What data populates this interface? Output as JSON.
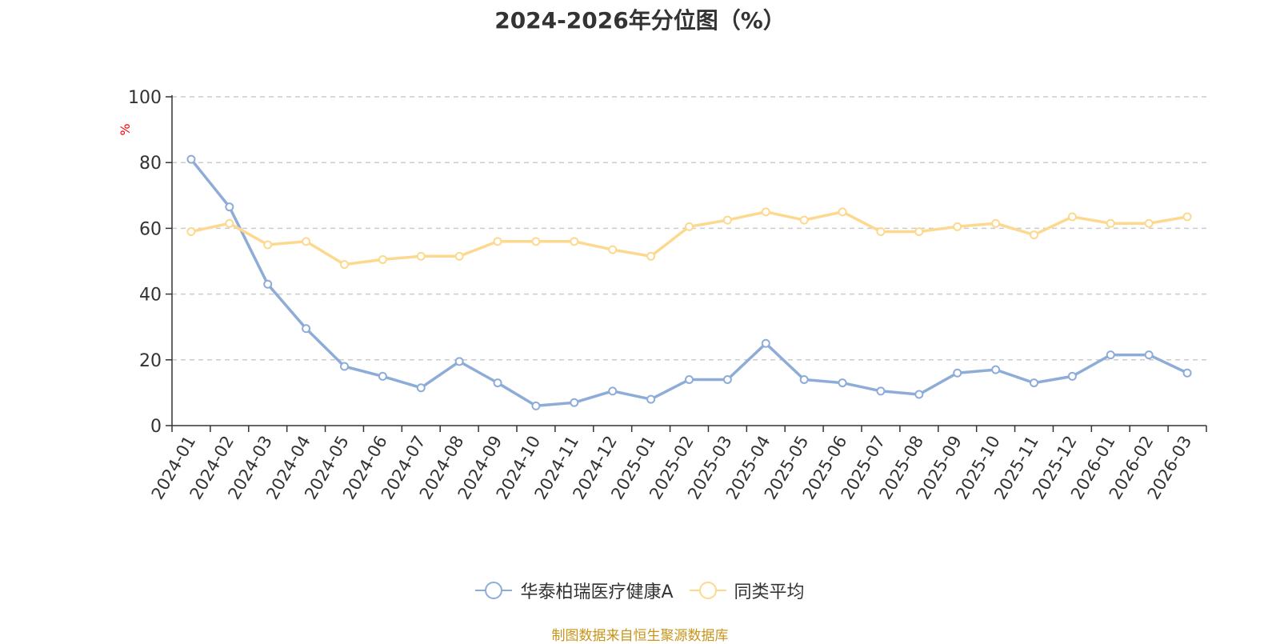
{
  "title": "2024-2026年分位图（%）",
  "source_note": "制图数据来自恒生聚源数据库",
  "colors": {
    "series_a": "#8eacd8",
    "series_b": "#fdd98f",
    "axis": "#333333",
    "grid": "#cccccc",
    "unit": "#ff0000",
    "source": "#c8941a"
  },
  "chart_data": {
    "type": "line",
    "ylabel": "%",
    "ylim": [
      0,
      100
    ],
    "yticks": [
      0,
      20,
      40,
      60,
      80,
      100
    ],
    "grid": true,
    "legend_position": "bottom-center",
    "x": [
      "2024-01",
      "2024-02",
      "2024-03",
      "2024-04",
      "2024-05",
      "2024-06",
      "2024-07",
      "2024-08",
      "2024-09",
      "2024-10",
      "2024-11",
      "2024-12",
      "2025-01",
      "2025-02",
      "2025-03",
      "2025-04",
      "2025-05",
      "2025-06",
      "2025-07",
      "2025-08",
      "2025-09",
      "2025-10",
      "2025-11",
      "2025-12",
      "2026-01",
      "2026-02",
      "2026-03"
    ],
    "series": [
      {
        "name": "华泰柏瑞医疗健康A",
        "values": [
          81,
          66.5,
          43,
          29.5,
          18,
          15,
          11.5,
          19.5,
          13,
          6,
          7,
          10.5,
          8,
          14,
          14,
          25,
          14,
          13,
          10.5,
          9.5,
          16,
          17,
          13,
          15,
          21.5,
          21.5,
          16
        ]
      },
      {
        "name": "同类平均",
        "values": [
          59,
          61.5,
          55,
          56,
          49,
          50.5,
          51.5,
          51.5,
          56,
          56,
          56,
          53.5,
          51.5,
          60.5,
          62.5,
          65,
          62.5,
          65,
          59,
          59,
          60.5,
          61.5,
          58,
          63.5,
          61.5,
          61.5,
          63.5
        ]
      }
    ]
  }
}
